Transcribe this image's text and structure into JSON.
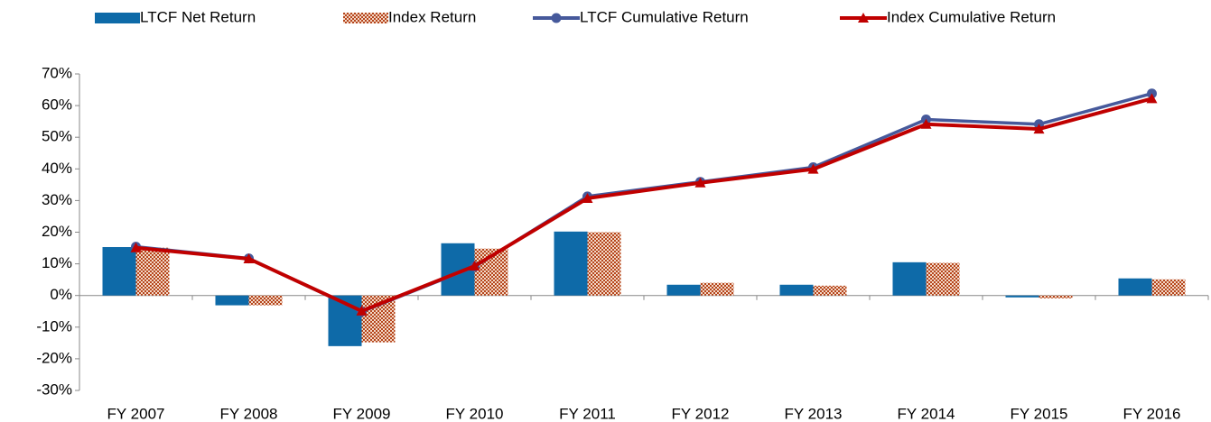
{
  "chart_data": {
    "type": "bar_line",
    "categories": [
      "FY 2007",
      "FY 2008",
      "FY 2009",
      "FY 2010",
      "FY 2011",
      "FY 2012",
      "FY 2013",
      "FY 2014",
      "FY 2015",
      "FY 2016"
    ],
    "series": [
      {
        "name": "LTCF Net Return",
        "kind": "bar",
        "color": "#0e6aa8",
        "values": [
          15.3,
          -3.1,
          -16,
          16.5,
          20.2,
          3.4,
          3.4,
          10.5,
          -0.6,
          5.4
        ]
      },
      {
        "name": "Index Return",
        "kind": "bar",
        "color": "#b5451b",
        "values": [
          15.1,
          -3.1,
          -14.8,
          14.8,
          20,
          4,
          3.1,
          10.3,
          -0.9,
          5.1
        ]
      },
      {
        "name": "LTCF Cumulative Return",
        "kind": "line",
        "color": "#46599b",
        "marker": "circle",
        "values": [
          15.4,
          11.7,
          -5.1,
          9.1,
          31.3,
          35.9,
          40.5,
          55.6,
          54.1,
          63.8
        ]
      },
      {
        "name": "Index Cumulative Return",
        "kind": "line",
        "color": "#c00000",
        "marker": "triangle",
        "values": [
          15.1,
          11.6,
          -4.9,
          9.3,
          30.7,
          35.6,
          39.9,
          54.1,
          52.6,
          62.2
        ]
      }
    ],
    "ylim": [
      -30,
      70
    ],
    "yticks": [
      {
        "value": -30,
        "label": "-30%"
      },
      {
        "value": -20,
        "label": "-20%"
      },
      {
        "value": -10,
        "label": "-10%"
      },
      {
        "value": 0,
        "label": "0%"
      },
      {
        "value": 10,
        "label": "10%"
      },
      {
        "value": 20,
        "label": "20%"
      },
      {
        "value": 30,
        "label": "30%"
      },
      {
        "value": 40,
        "label": "40%"
      },
      {
        "value": 50,
        "label": "50%"
      },
      {
        "value": 60,
        "label": "60%"
      },
      {
        "value": 70,
        "label": "70%"
      }
    ],
    "legend": "top"
  }
}
